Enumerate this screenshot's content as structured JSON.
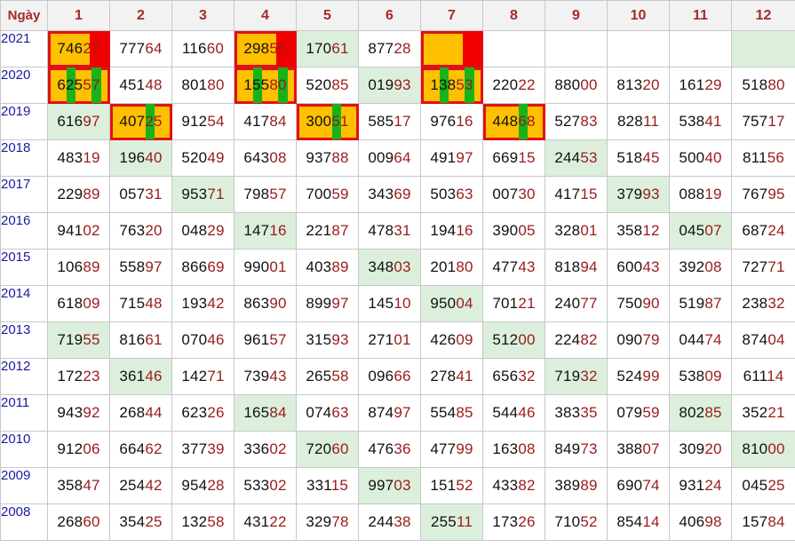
{
  "header": {
    "corner": "Ngày",
    "columns": [
      "1",
      "2",
      "3",
      "4",
      "5",
      "6",
      "7",
      "8",
      "9",
      "10",
      "11",
      "12"
    ]
  },
  "colors": {
    "year_text": "#1a1aa6",
    "header_text": "#a52a2a",
    "highlight_bg": "#dcefdc",
    "box_border": "#e0101a",
    "gold": "#ffc000",
    "red_marker": "#f00000",
    "green_marker": "#19b319"
  },
  "rows": [
    {
      "year": "2021",
      "cells": [
        {
          "v": "74627",
          "style": "gold",
          "box": true,
          "marker": "red",
          "mpos": 4
        },
        {
          "v": "77764"
        },
        {
          "v": "11660"
        },
        {
          "v": "29855",
          "style": "gold",
          "box": true,
          "marker": "red",
          "mpos": 4
        },
        {
          "v": "17061",
          "style": "hl"
        },
        {
          "v": "87728"
        },
        {
          "v": "",
          "style": "gold",
          "box": true,
          "marker": "red",
          "mpos": 4
        },
        {
          "v": ""
        },
        {
          "v": ""
        },
        {
          "v": ""
        },
        {
          "v": ""
        },
        {
          "v": "",
          "style": "hl"
        }
      ]
    },
    {
      "year": "2020",
      "cells": [
        {
          "v": "62557",
          "style": "gold",
          "box": true,
          "marker": "green-pair"
        },
        {
          "v": "45148"
        },
        {
          "v": "80180"
        },
        {
          "v": "15580",
          "style": "gold",
          "box": true,
          "marker": "green-pair"
        },
        {
          "v": "52085"
        },
        {
          "v": "01993",
          "style": "hl"
        },
        {
          "v": "13853",
          "style": "gold",
          "box": true,
          "marker": "green-pair"
        },
        {
          "v": "22022"
        },
        {
          "v": "88000"
        },
        {
          "v": "81320"
        },
        {
          "v": "16129"
        },
        {
          "v": "51880"
        }
      ]
    },
    {
      "year": "2019",
      "cells": [
        {
          "v": "61697",
          "style": "hl"
        },
        {
          "v": "40725",
          "style": "gold",
          "box": true,
          "marker": "green",
          "mpos": 3
        },
        {
          "v": "91254"
        },
        {
          "v": "41784"
        },
        {
          "v": "30051",
          "style": "gold",
          "box": true,
          "marker": "green",
          "mpos": 3
        },
        {
          "v": "58517"
        },
        {
          "v": "97616"
        },
        {
          "v": "44868",
          "style": "gold",
          "box": true,
          "marker": "green",
          "mpos": 3
        },
        {
          "v": "52783"
        },
        {
          "v": "82811"
        },
        {
          "v": "53841"
        },
        {
          "v": "75717"
        }
      ]
    },
    {
      "year": "2018",
      "cells": [
        {
          "v": "48319"
        },
        {
          "v": "19640",
          "style": "hl"
        },
        {
          "v": "52049"
        },
        {
          "v": "64308"
        },
        {
          "v": "93788"
        },
        {
          "v": "00964"
        },
        {
          "v": "49197"
        },
        {
          "v": "66915"
        },
        {
          "v": "24453",
          "style": "hl"
        },
        {
          "v": "51845"
        },
        {
          "v": "50040"
        },
        {
          "v": "81156"
        }
      ]
    },
    {
      "year": "2017",
      "cells": [
        {
          "v": "22989"
        },
        {
          "v": "05731"
        },
        {
          "v": "95371",
          "style": "hl"
        },
        {
          "v": "79857"
        },
        {
          "v": "70059"
        },
        {
          "v": "34369"
        },
        {
          "v": "50363"
        },
        {
          "v": "00730"
        },
        {
          "v": "41715"
        },
        {
          "v": "37993",
          "style": "hl"
        },
        {
          "v": "08819"
        },
        {
          "v": "76795"
        }
      ]
    },
    {
      "year": "2016",
      "cells": [
        {
          "v": "94102"
        },
        {
          "v": "76320"
        },
        {
          "v": "04829"
        },
        {
          "v": "14716",
          "style": "hl"
        },
        {
          "v": "22187"
        },
        {
          "v": "47831"
        },
        {
          "v": "19416"
        },
        {
          "v": "39005"
        },
        {
          "v": "32801"
        },
        {
          "v": "35812"
        },
        {
          "v": "04507",
          "style": "hl"
        },
        {
          "v": "68724"
        }
      ]
    },
    {
      "year": "2015",
      "cells": [
        {
          "v": "10689"
        },
        {
          "v": "55897"
        },
        {
          "v": "86669"
        },
        {
          "v": "99001"
        },
        {
          "v": "40389"
        },
        {
          "v": "34803",
          "style": "hl"
        },
        {
          "v": "20180"
        },
        {
          "v": "47743"
        },
        {
          "v": "81894"
        },
        {
          "v": "60043"
        },
        {
          "v": "39208"
        },
        {
          "v": "72771"
        }
      ]
    },
    {
      "year": "2014",
      "cells": [
        {
          "v": "61809"
        },
        {
          "v": "71548"
        },
        {
          "v": "19342"
        },
        {
          "v": "86390"
        },
        {
          "v": "89997"
        },
        {
          "v": "14510"
        },
        {
          "v": "95004",
          "style": "hl"
        },
        {
          "v": "70121"
        },
        {
          "v": "24077"
        },
        {
          "v": "75090"
        },
        {
          "v": "51987"
        },
        {
          "v": "23832"
        }
      ]
    },
    {
      "year": "2013",
      "cells": [
        {
          "v": "71955",
          "style": "hl"
        },
        {
          "v": "81661"
        },
        {
          "v": "07046"
        },
        {
          "v": "96157"
        },
        {
          "v": "31593"
        },
        {
          "v": "27101"
        },
        {
          "v": "42609"
        },
        {
          "v": "51200",
          "style": "hl"
        },
        {
          "v": "22482"
        },
        {
          "v": "09079"
        },
        {
          "v": "04474"
        },
        {
          "v": "87404"
        }
      ]
    },
    {
      "year": "2012",
      "cells": [
        {
          "v": "17223"
        },
        {
          "v": "36146",
          "style": "hl"
        },
        {
          "v": "14271"
        },
        {
          "v": "73943"
        },
        {
          "v": "26558"
        },
        {
          "v": "09666"
        },
        {
          "v": "27841"
        },
        {
          "v": "65632"
        },
        {
          "v": "71932",
          "style": "hl"
        },
        {
          "v": "52499"
        },
        {
          "v": "53809"
        },
        {
          "v": "61114"
        }
      ]
    },
    {
      "year": "2011",
      "cells": [
        {
          "v": "94392"
        },
        {
          "v": "26844"
        },
        {
          "v": "62326"
        },
        {
          "v": "16584",
          "style": "hl"
        },
        {
          "v": "07463"
        },
        {
          "v": "87497"
        },
        {
          "v": "55485"
        },
        {
          "v": "54446"
        },
        {
          "v": "38335"
        },
        {
          "v": "07959"
        },
        {
          "v": "80285",
          "style": "hl"
        },
        {
          "v": "35221"
        }
      ]
    },
    {
      "year": "2010",
      "cells": [
        {
          "v": "91206"
        },
        {
          "v": "66462"
        },
        {
          "v": "37739"
        },
        {
          "v": "33602"
        },
        {
          "v": "72060",
          "style": "hl"
        },
        {
          "v": "47636"
        },
        {
          "v": "47799"
        },
        {
          "v": "16308"
        },
        {
          "v": "84973"
        },
        {
          "v": "38807"
        },
        {
          "v": "30920"
        },
        {
          "v": "81000",
          "style": "hl"
        }
      ]
    },
    {
      "year": "2009",
      "cells": [
        {
          "v": "35847"
        },
        {
          "v": "25442"
        },
        {
          "v": "95428"
        },
        {
          "v": "53302"
        },
        {
          "v": "33115"
        },
        {
          "v": "99703",
          "style": "hl"
        },
        {
          "v": "15152"
        },
        {
          "v": "43382"
        },
        {
          "v": "38989"
        },
        {
          "v": "69074"
        },
        {
          "v": "93124"
        },
        {
          "v": "04525"
        }
      ]
    },
    {
      "year": "2008",
      "cells": [
        {
          "v": "26860"
        },
        {
          "v": "35425"
        },
        {
          "v": "13258"
        },
        {
          "v": "43122"
        },
        {
          "v": "32978"
        },
        {
          "v": "24438"
        },
        {
          "v": "25511",
          "style": "hl"
        },
        {
          "v": "17326"
        },
        {
          "v": "71052"
        },
        {
          "v": "85414"
        },
        {
          "v": "40698"
        },
        {
          "v": "15784"
        }
      ]
    }
  ]
}
